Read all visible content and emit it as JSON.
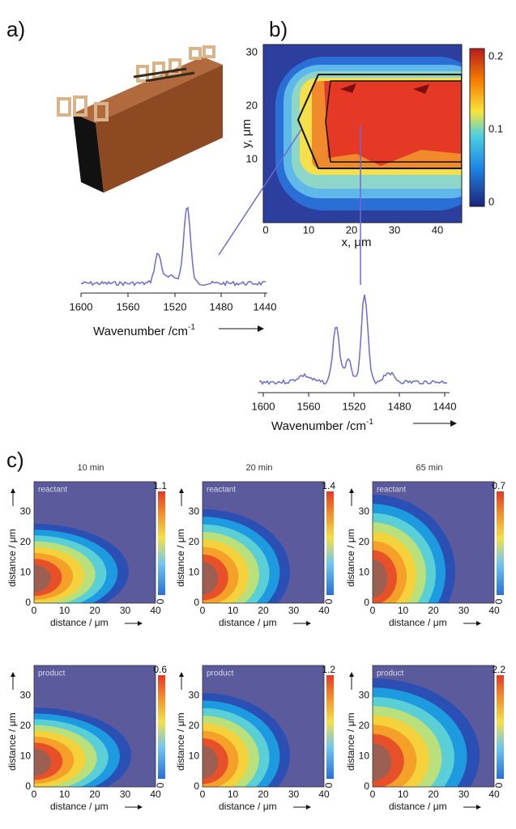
{
  "panels": {
    "a": {
      "label": "a)",
      "spectrum": {
        "xticks": [
          "1600",
          "1560",
          "1520",
          "1480",
          "1440"
        ],
        "xlabel": "Wavenumber /cm",
        "xlabel_sup": "-1"
      }
    },
    "b": {
      "label": "b)",
      "map": {
        "yticks": [
          "30",
          "20",
          "10"
        ],
        "xticks": [
          "0",
          "10",
          "20",
          "30",
          "40"
        ],
        "ylabel": "y, μm",
        "xlabel": "x, μm",
        "colorbar": [
          "0.2",
          "0.1",
          "0"
        ]
      },
      "spectrum": {
        "xticks": [
          "1600",
          "1560",
          "1520",
          "1480",
          "1440"
        ],
        "xlabel": "Wavenumber /cm",
        "xlabel_sup": "-1"
      }
    },
    "c": {
      "label": "c)",
      "xticks": [
        "0",
        "10",
        "20",
        "30",
        "40"
      ],
      "yticks": [
        "0",
        "10",
        "20",
        "30"
      ],
      "axis_label": "distance / μm",
      "columns": [
        {
          "title": "10 min",
          "reactant": {
            "label": "reactant",
            "cbar_max": "1.1",
            "cbar_min": "0"
          },
          "product": {
            "label": "product",
            "cbar_max": "0.6",
            "cbar_min": "0"
          }
        },
        {
          "title": "20 min",
          "reactant": {
            "label": "reactant",
            "cbar_max": "1.4",
            "cbar_min": "0"
          },
          "product": {
            "label": "product",
            "cbar_max": "1.2",
            "cbar_min": "0"
          }
        },
        {
          "title": "65 min",
          "reactant": {
            "label": "reactant",
            "cbar_max": "0.7",
            "cbar_min": "0"
          },
          "product": {
            "label": "product",
            "cbar_max": "2.2",
            "cbar_min": "0"
          }
        }
      ]
    }
  }
}
